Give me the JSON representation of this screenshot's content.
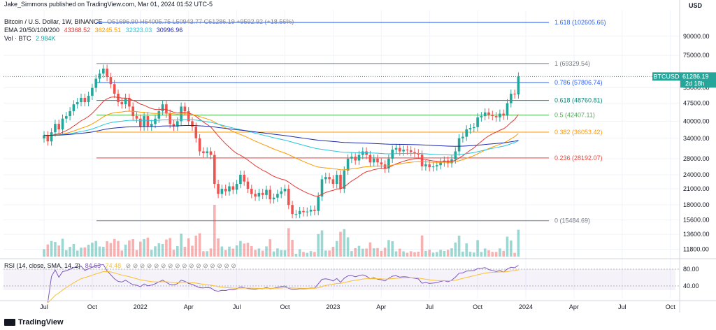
{
  "publisher": "Jake_Simmons published on TradingView.com, Mar 01, 2024 01:52 UTC-5",
  "currency": "USD",
  "symbol_title": "Bitcoin / U.S. Dollar, 1W, BINANCE",
  "ohlc": "O51696.90 H64005.75 L50943.77 C61286.19 +9592.92 (+18.56%)",
  "ema_label": "EMA 20/50/100/200",
  "ema_values": [
    "43368.52",
    "36245.51",
    "32323.03",
    "30996.96"
  ],
  "vol_label": "Vol · BTC",
  "vol_value": "2.984K",
  "price_tag": {
    "symbol": "BTCUSD",
    "price": "61286.19",
    "timer": "2d 18h"
  },
  "rsi_label": "RSI (14, close, SMA, 14, 2)",
  "rsi_values": [
    "84.63",
    "74.48"
  ],
  "rsi_ticks": [
    "80.00",
    "40.00"
  ],
  "footer": "TradingView",
  "colors": {
    "up": "#26a69a",
    "down": "#ef5350",
    "ema20": "#e53935",
    "ema50": "#ff9800",
    "ema100": "#26c6da",
    "ema200": "#1e2bb0",
    "rsi": "#7e57c2",
    "rsi_ma": "#fbc02d"
  },
  "chart_data": {
    "type": "candlestick",
    "title": "Bitcoin / U.S. Dollar, 1W, BINANCE",
    "y_scale": "log",
    "ylim": [
      11000,
      115000
    ],
    "y_ticks": [
      90000,
      75000,
      55000,
      47500,
      40000,
      34000,
      28000,
      24000,
      21000,
      18000,
      15600,
      13600,
      11800
    ],
    "x_ticks": [
      "Jul",
      "Oct",
      "2022",
      "Apr",
      "Jul",
      "Oct",
      "2023",
      "Apr",
      "Jul",
      "Oct",
      "2024",
      "Apr",
      "Jul",
      "Oct"
    ],
    "x_tick_weeks": [
      0,
      13,
      26,
      39,
      52,
      65,
      78,
      91,
      104,
      117,
      130,
      143,
      156,
      169
    ],
    "close_series_weekly": [
      35000,
      33000,
      36000,
      39000,
      37000,
      41000,
      42000,
      44000,
      47000,
      48000,
      50000,
      48000,
      51000,
      55000,
      60000,
      63000,
      66000,
      61000,
      57000,
      52000,
      48000,
      47000,
      50000,
      46000,
      42000,
      41000,
      38000,
      42000,
      38000,
      39000,
      41000,
      44000,
      47000,
      43000,
      39000,
      38000,
      40000,
      46000,
      44000,
      40000,
      38000,
      34000,
      30000,
      29500,
      30000,
      29000,
      22000,
      20000,
      21000,
      20500,
      21500,
      20800,
      22000,
      24000,
      22500,
      21000,
      20000,
      19500,
      20200,
      19800,
      20800,
      19000,
      19300,
      20000,
      20500,
      21000,
      18000,
      16500,
      16500,
      17000,
      16800,
      16900,
      17200,
      17000,
      19500,
      23000,
      23500,
      23000,
      22000,
      24000,
      21000,
      25000,
      28000,
      28500,
      27500,
      29000,
      30000,
      29000,
      27000,
      28000,
      27000,
      26500,
      25500,
      28000,
      30500,
      31000,
      30000,
      30500,
      30300,
      29800,
      29500,
      29100,
      26000,
      26500,
      25800,
      26000,
      26300,
      27000,
      27500,
      26800,
      27800,
      30000,
      34000,
      34500,
      37000,
      37500,
      37800,
      41500,
      42000,
      43500,
      42500,
      42000,
      41500,
      43000,
      42200,
      47500,
      52000,
      51696,
      61286
    ],
    "fib_levels": [
      {
        "ratio": "1.618",
        "price": 102605.66,
        "label": "1.618 (102605.66)",
        "color": "#2962ff"
      },
      {
        "ratio": "1",
        "price": 69329.54,
        "label": "1 (69329.54)",
        "color": "#787b86"
      },
      {
        "ratio": "0.786",
        "price": 57806.74,
        "label": "0.786 (57806.74)",
        "color": "#2962ff"
      },
      {
        "ratio": "0.618",
        "price": 48760.81,
        "label": "0.618 (48760.81)",
        "color": "#00897b"
      },
      {
        "ratio": "0.5",
        "price": 42407.11,
        "label": "0.5 (42407.11)",
        "color": "#4caf50"
      },
      {
        "ratio": "0.382",
        "price": 36053.42,
        "label": "0.382 (36053.42)",
        "color": "#ff9800"
      },
      {
        "ratio": "0.236",
        "price": 28192.07,
        "label": "0.236 (28192.07)",
        "color": "#f44336"
      },
      {
        "ratio": "0",
        "price": 15484.69,
        "label": "0 (15484.69)",
        "color": "#787b86"
      }
    ],
    "last_price": 61286.19
  }
}
